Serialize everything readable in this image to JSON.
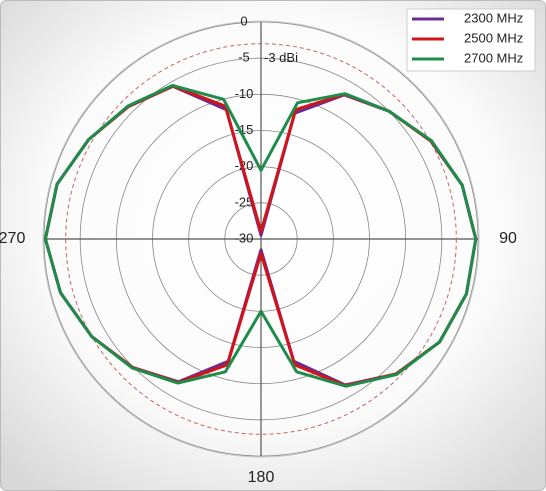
{
  "chart_data": {
    "type": "polar",
    "rlim": [
      -30,
      0
    ],
    "rticks": [
      0,
      -5,
      -10,
      -15,
      -20,
      -25,
      -30
    ],
    "thetaticks": [
      90,
      180,
      270
    ],
    "annotation": {
      "text": "-3 dBi",
      "value": -3,
      "color": "#c86464"
    },
    "legend": "upper right",
    "theta": [
      0,
      15,
      30,
      45,
      60,
      75,
      90,
      105,
      120,
      135,
      150,
      165,
      180,
      195,
      210,
      225,
      240,
      255,
      270,
      285,
      300,
      315,
      330,
      345
    ],
    "series": [
      {
        "name": "2300 MHz",
        "color": "#6a2c91",
        "values": [
          -29.5,
          -12,
          -7,
          -5,
          -2.9,
          -1.2,
          -0.3,
          -0.6,
          -1.5,
          -3.6,
          -6.7,
          -12.5,
          -28.5,
          -12.5,
          -7.2,
          -4.9,
          -3,
          -1.3,
          -0.2,
          -0.8,
          -2.5,
          -4.1,
          -5.6,
          -11.5
        ]
      },
      {
        "name": "2500 MHz",
        "color": "#d0141a",
        "values": [
          -29,
          -11.5,
          -6.9,
          -5,
          -2.9,
          -1.2,
          -0.3,
          -0.6,
          -1.5,
          -3.6,
          -6.6,
          -12,
          -28,
          -12,
          -7.1,
          -4.9,
          -3,
          -1.3,
          -0.2,
          -0.8,
          -2.5,
          -4.1,
          -5.6,
          -11
        ]
      },
      {
        "name": "2700 MHz",
        "color": "#1e8c4a",
        "values": [
          -20.5,
          -10.5,
          -6.8,
          -5,
          -2.8,
          -1.2,
          -0.3,
          -0.6,
          -1.5,
          -3.5,
          -6.5,
          -11,
          -20,
          -11,
          -7,
          -4.8,
          -3,
          -1.3,
          -0.2,
          -0.8,
          -2.5,
          -4,
          -5.5,
          -10
        ]
      }
    ]
  }
}
